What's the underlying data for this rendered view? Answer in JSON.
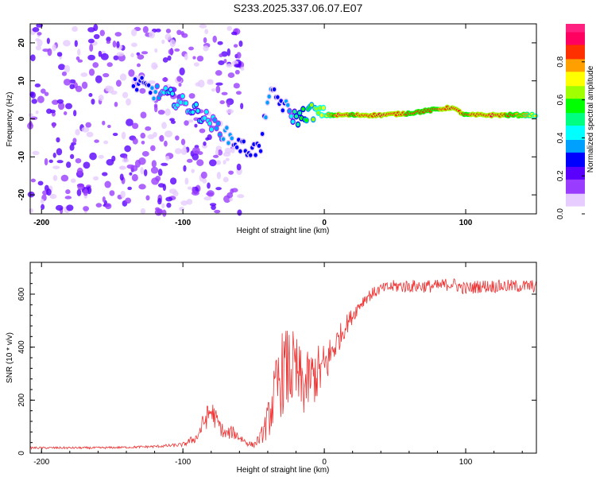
{
  "figure_title": "S233.2025.337.06.07.E07",
  "chart_data": [
    {
      "type": "heatmap",
      "title": "S233.2025.337.06.07.E07",
      "xlabel": "Height of straight line (km)",
      "ylabel": "Frequency (Hz)",
      "xlim": [
        -208,
        150
      ],
      "ylim": [
        -25,
        25
      ],
      "xticks": [
        -200,
        -100,
        0,
        100
      ],
      "xtick_labels": [
        "-200",
        "-100",
        "0",
        "100"
      ],
      "yticks": [
        -20,
        -10,
        0,
        10,
        20
      ],
      "ytick_labels": [
        "-20",
        "-10",
        "0",
        "10",
        "20"
      ],
      "colorbar": {
        "label": "Normalized spectral amplitude",
        "range": [
          0,
          1
        ],
        "ticks": [
          0.0,
          0.2,
          0.4,
          0.6,
          0.8
        ],
        "tick_labels": [
          "0.0",
          "0.2",
          "0.4",
          "0.6",
          "0.8"
        ],
        "colormap": [
          "#ffffff",
          "#e6ccff",
          "#9a3dff",
          "#5a00ff",
          "#0000ff",
          "#00a0ff",
          "#00ffff",
          "#00ff80",
          "#00ff00",
          "#a0ff00",
          "#ffff00",
          "#ffa000",
          "#ff3000",
          "#ff0060",
          "#ff2080"
        ]
      },
      "ridge": {
        "x": [
          -130,
          -120,
          -110,
          -100,
          -90,
          -80,
          -70,
          -60,
          -55,
          -45,
          -40,
          -35,
          -30,
          -25,
          -20,
          -10,
          0,
          10,
          20,
          40,
          60,
          80,
          90,
          100,
          120,
          140,
          150
        ],
        "y": [
          9,
          7,
          6,
          4,
          2,
          -1,
          -4,
          -7,
          -8,
          -8,
          6,
          6,
          4,
          2,
          0,
          2,
          1,
          1,
          1,
          1,
          1.5,
          2.5,
          3,
          1,
          1,
          1,
          1
        ],
        "amplitude": [
          0.25,
          0.35,
          0.45,
          0.4,
          0.45,
          0.4,
          0.35,
          0.3,
          0.25,
          0.25,
          0.35,
          0.3,
          0.3,
          0.35,
          0.5,
          0.6,
          0.7,
          0.9,
          0.85,
          0.9,
          0.85,
          0.85,
          0.9,
          0.85,
          0.9,
          0.8,
          0.7
        ]
      }
    },
    {
      "type": "line",
      "xlabel": "Height of straight line (km)",
      "ylabel": "SNR (10 * v/v)",
      "xlim": [
        -208,
        150
      ],
      "ylim": [
        0,
        720
      ],
      "xticks": [
        -200,
        -100,
        0,
        100
      ],
      "xtick_labels": [
        "-200",
        "-100",
        "0",
        "100"
      ],
      "yticks": [
        0,
        200,
        400,
        600
      ],
      "ytick_labels": [
        "0",
        "200",
        "400",
        "600"
      ],
      "color": "#ee3333",
      "series": [
        {
          "name": "SNR",
          "x": [
            -208,
            -200,
            -180,
            -160,
            -140,
            -120,
            -110,
            -100,
            -90,
            -85,
            -80,
            -75,
            -70,
            -65,
            -60,
            -55,
            -50,
            -45,
            -40,
            -35,
            -30,
            -25,
            -20,
            -15,
            -10,
            -5,
            0,
            5,
            10,
            15,
            20,
            25,
            30,
            40,
            50,
            60,
            70,
            80,
            90,
            100,
            110,
            120,
            130,
            140,
            150
          ],
          "values": [
            20,
            20,
            20,
            20,
            22,
            25,
            28,
            32,
            60,
            120,
            160,
            110,
            70,
            80,
            60,
            40,
            30,
            60,
            120,
            220,
            300,
            320,
            300,
            250,
            280,
            300,
            320,
            380,
            430,
            480,
            520,
            560,
            590,
            620,
            630,
            630,
            630,
            630,
            640,
            620,
            630,
            630,
            630,
            630,
            630
          ],
          "noise": [
            4,
            4,
            4,
            4,
            4,
            5,
            6,
            8,
            20,
            40,
            50,
            35,
            25,
            25,
            20,
            12,
            10,
            25,
            70,
            120,
            160,
            160,
            150,
            120,
            110,
            110,
            100,
            70,
            50,
            40,
            30,
            25,
            25,
            20,
            25,
            25,
            25,
            25,
            25,
            25,
            25,
            25,
            25,
            25,
            25
          ]
        }
      ]
    }
  ]
}
